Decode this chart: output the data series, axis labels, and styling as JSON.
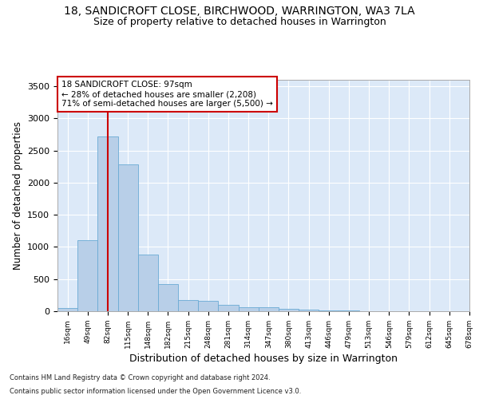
{
  "title": "18, SANDICROFT CLOSE, BIRCHWOOD, WARRINGTON, WA3 7LA",
  "subtitle": "Size of property relative to detached houses in Warrington",
  "xlabel": "Distribution of detached houses by size in Warrington",
  "ylabel": "Number of detached properties",
  "footnote1": "Contains HM Land Registry data © Crown copyright and database right 2024.",
  "footnote2": "Contains public sector information licensed under the Open Government Licence v3.0.",
  "annotation_line1": "18 SANDICROFT CLOSE: 97sqm",
  "annotation_line2": "← 28% of detached houses are smaller (2,208)",
  "annotation_line3": "71% of semi-detached houses are larger (5,500) →",
  "bar_values": [
    50,
    1100,
    2720,
    2280,
    880,
    420,
    170,
    165,
    95,
    65,
    60,
    35,
    25,
    15,
    10,
    5,
    5,
    5,
    5,
    3
  ],
  "bar_labels": [
    "16sqm",
    "49sqm",
    "82sqm",
    "115sqm",
    "148sqm",
    "182sqm",
    "215sqm",
    "248sqm",
    "281sqm",
    "314sqm",
    "347sqm",
    "380sqm",
    "413sqm",
    "446sqm",
    "479sqm",
    "513sqm",
    "546sqm",
    "579sqm",
    "612sqm",
    "645sqm",
    "678sqm"
  ],
  "bar_color": "#b8cfe8",
  "bar_edge_color": "#6aaad4",
  "vline_x_idx": 2,
  "vline_color": "#cc0000",
  "ylim": [
    0,
    3600
  ],
  "yticks": [
    0,
    500,
    1000,
    1500,
    2000,
    2500,
    3000,
    3500
  ],
  "bg_color": "#dce9f8",
  "grid_color": "#ffffff",
  "annotation_box_edge": "#cc0000",
  "title_fontsize": 10,
  "subtitle_fontsize": 9,
  "ylabel_fontsize": 8.5,
  "xlabel_fontsize": 9,
  "ytick_fontsize": 8,
  "xtick_fontsize": 6.5,
  "ann_fontsize": 7.5,
  "footnote_fontsize": 6
}
